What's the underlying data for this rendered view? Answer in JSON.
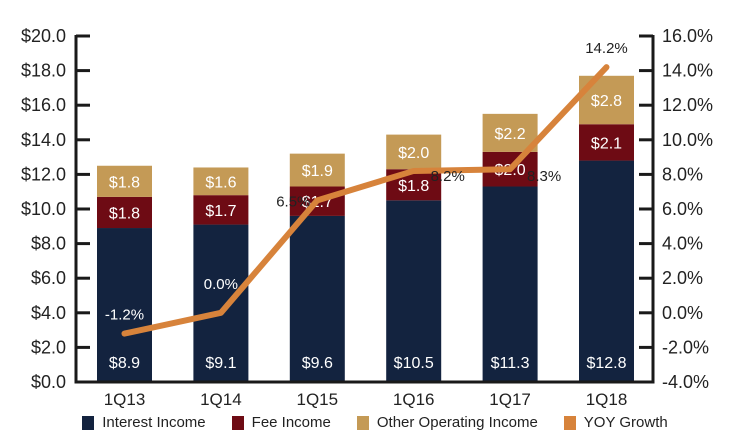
{
  "chart_data": {
    "type": "bar",
    "stacked": true,
    "title": "",
    "xlabel": "",
    "ylabel": "",
    "categories": [
      "1Q13",
      "1Q14",
      "1Q15",
      "1Q16",
      "1Q17",
      "1Q18"
    ],
    "series": [
      {
        "name": "Interest Income",
        "type": "bar",
        "axis": "left",
        "color": "#13233f",
        "values": [
          8.9,
          9.1,
          9.6,
          10.5,
          11.3,
          12.8
        ],
        "labels": [
          "$8.9",
          "$9.1",
          "$9.6",
          "$10.5",
          "$11.3",
          "$12.8"
        ]
      },
      {
        "name": "Fee Income",
        "type": "bar",
        "axis": "left",
        "color": "#6e0b14",
        "values": [
          1.8,
          1.7,
          1.7,
          1.8,
          2.0,
          2.1
        ],
        "labels": [
          "$1.8",
          "$1.7",
          "$1.7",
          "$1.8",
          "$2.0",
          "$2.1"
        ]
      },
      {
        "name": "Other Operating Income",
        "type": "bar",
        "axis": "left",
        "color": "#c49a56",
        "values": [
          1.8,
          1.6,
          1.9,
          2.0,
          2.2,
          2.8
        ],
        "labels": [
          "$1.8",
          "$1.6",
          "$1.9",
          "$2.0",
          "$2.2",
          "$2.8"
        ]
      },
      {
        "name": "YOY Growth",
        "type": "line",
        "axis": "right",
        "color": "#d7833b",
        "values": [
          -1.2,
          0.0,
          6.5,
          8.2,
          8.3,
          14.2
        ],
        "labels": [
          "-1.2%",
          "0.0%",
          "6.5%",
          "8.2%",
          "8.3%",
          "14.2%"
        ]
      }
    ],
    "y_left": {
      "range": [
        0,
        20
      ],
      "ticks": [
        "$0.0",
        "$2.0",
        "$4.0",
        "$6.0",
        "$8.0",
        "$10.0",
        "$12.0",
        "$14.0",
        "$16.0",
        "$18.0",
        "$20.0"
      ]
    },
    "y_right": {
      "range": [
        -4,
        16
      ],
      "ticks": [
        "-4.0%",
        "-2.0%",
        "0.0%",
        "2.0%",
        "4.0%",
        "6.0%",
        "8.0%",
        "10.0%",
        "12.0%",
        "14.0%",
        "16.0%"
      ]
    },
    "grid": false,
    "legend_position": "bottom"
  },
  "legend": [
    {
      "label": "Interest Income",
      "color": "#13233f"
    },
    {
      "label": "Fee Income",
      "color": "#6e0b14"
    },
    {
      "label": "Other Operating Income",
      "color": "#c49a56"
    },
    {
      "label": "YOY Growth",
      "color": "#d7833b"
    }
  ]
}
